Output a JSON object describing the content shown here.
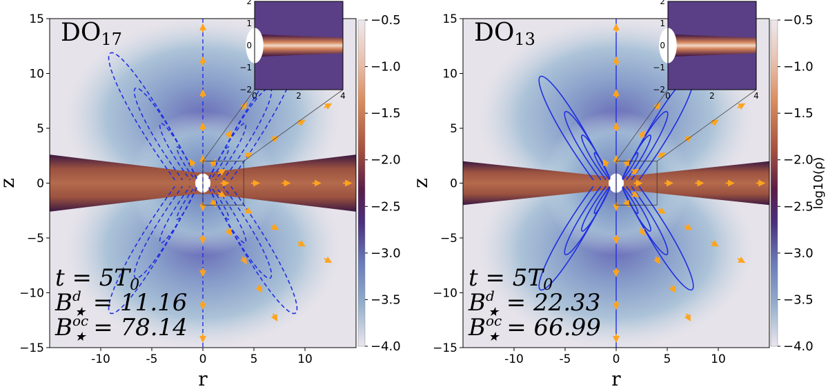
{
  "chart_data": [
    {
      "type": "heatmap",
      "title": "DO17",
      "title_main": "DO",
      "title_sub": "17",
      "xlabel": "r",
      "ylabel": "z",
      "xlim": [
        -15,
        15
      ],
      "ylim": [
        -15,
        15
      ],
      "x_ticks": [
        -10,
        -5,
        0,
        5,
        10
      ],
      "y_ticks": [
        -15,
        -10,
        -5,
        0,
        5,
        10,
        15
      ],
      "colorbar": {
        "label": "",
        "range": [
          -4.0,
          -0.5
        ],
        "ticks": [
          "-0.5",
          "-1.0",
          "-1.5",
          "-2.0",
          "-2.5",
          "-3.0",
          "-3.5",
          "-4.0"
        ]
      },
      "field_lines": "dashed",
      "annotations": [
        "t = 5T0",
        "B★d = 11.16",
        "B★oc = 78.14"
      ],
      "annot_lines": [
        {
          "lhs": "t",
          "sup": "",
          "rhs": "= 5T",
          "rhs_sub": "0"
        },
        {
          "lhs": "B",
          "sup": "d",
          "rhs": "= 11.16",
          "rhs_sub": ""
        },
        {
          "lhs": "B",
          "sup": "oc",
          "rhs": "= 78.14",
          "rhs_sub": ""
        }
      ],
      "inset": {
        "xlim": [
          0,
          4
        ],
        "ylim": [
          -2,
          2
        ],
        "x_ticks": [
          0,
          2,
          4
        ],
        "y_ticks": [
          -2,
          -1,
          0,
          1,
          2
        ]
      }
    },
    {
      "type": "heatmap",
      "title": "DO13",
      "title_main": "DO",
      "title_sub": "13",
      "xlabel": "r",
      "ylabel": "z",
      "xlim": [
        -15,
        15
      ],
      "ylim": [
        -15,
        15
      ],
      "x_ticks": [
        -10,
        -5,
        0,
        5,
        10
      ],
      "y_ticks": [
        -15,
        -10,
        -5,
        0,
        5,
        10,
        15
      ],
      "colorbar": {
        "label": "log10(ρ)",
        "range": [
          -4.0,
          -0.5
        ],
        "ticks": [
          "-0.5",
          "-1.0",
          "-1.5",
          "-2.0",
          "-2.5",
          "-3.0",
          "-3.5",
          "-4.0"
        ]
      },
      "field_lines": "solid",
      "annotations": [
        "t = 5T0",
        "B★d = 22.33",
        "B★oc = 66.99"
      ],
      "annot_lines": [
        {
          "lhs": "t",
          "sup": "",
          "rhs": "= 5T",
          "rhs_sub": "0"
        },
        {
          "lhs": "B",
          "sup": "d",
          "rhs": "= 22.33",
          "rhs_sub": ""
        },
        {
          "lhs": "B",
          "sup": "oc",
          "rhs": "= 66.99",
          "rhs_sub": ""
        }
      ],
      "inset": {
        "xlim": [
          0,
          4
        ],
        "ylim": [
          -2,
          2
        ],
        "x_ticks": [
          0,
          2,
          4
        ],
        "y_ticks": [
          -2,
          -1,
          0,
          1,
          2
        ]
      }
    }
  ],
  "colors": {
    "background": "#e7e3ea",
    "halo": "#8fb0cf",
    "disk": "#a85a44",
    "disk_edge": "#3a1440",
    "field_line": "#1f2fe0",
    "arrow": "#ffa41c",
    "inset_bg": "#5a3f86"
  }
}
